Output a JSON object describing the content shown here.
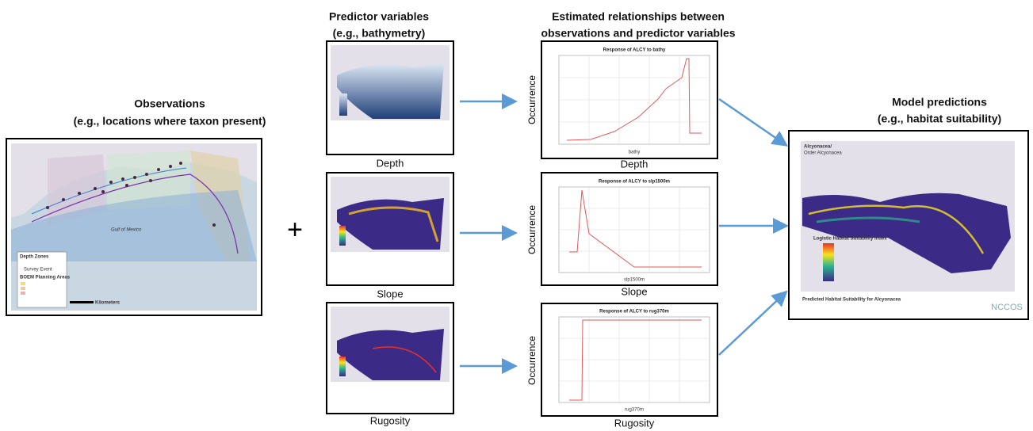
{
  "observations": {
    "title": [
      "Observations",
      "(e.g., locations where taxon present)"
    ],
    "legend": [
      "Depth Zones",
      "BOEM Planning Areas",
      "Survey Event"
    ],
    "map_label": "Gulf of Mexico",
    "scale_unit": "Kilometers"
  },
  "plus": "+",
  "predictors": {
    "title": [
      "Predictor variables",
      "(e.g., bathymetry)"
    ],
    "captions": [
      "Depth",
      "Slope",
      "Rugosity"
    ]
  },
  "relationships": {
    "title": [
      "Estimated relationships between",
      "observations and predictor variables"
    ],
    "y_label": "Occurrence",
    "plots": [
      {
        "title": "Response of ALCY to bathy",
        "x_label": "bathy",
        "caption": "Depth"
      },
      {
        "title": "Response of ALCY to slp1500m",
        "x_label": "slp1500m",
        "caption": "Slope"
      },
      {
        "title": "Response of ALCY to rug370m",
        "x_label": "rug370m",
        "caption": "Rugosity"
      }
    ]
  },
  "predictions": {
    "title": [
      "Model predictions",
      "(e.g., habitat suitability)"
    ],
    "map_title": [
      "Alcyonacea/",
      "Order Alcyonacea"
    ],
    "legend_title": "Logistic Habitat Suitability Index",
    "footer": "Predicted Habitat Suitability for Alcyonacea",
    "logo": "NCCOS"
  }
}
